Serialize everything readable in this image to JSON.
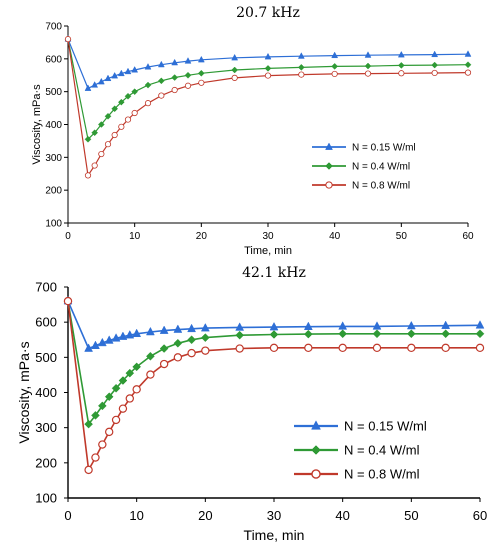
{
  "chart_data": [
    {
      "type": "line",
      "title": "20.7 kHz",
      "xlabel": "Time, min",
      "ylabel": "Viscosity, mPa·s",
      "xlim": [
        0,
        60
      ],
      "ylim": [
        100,
        700
      ],
      "xticks": [
        0,
        10,
        20,
        30,
        40,
        50,
        60
      ],
      "yticks": [
        100,
        200,
        300,
        400,
        500,
        600,
        700
      ],
      "legend_position": "middle-right",
      "grid": false,
      "series": [
        {
          "name": "N = 0.15 W/ml",
          "color": "#2e6fd6",
          "marker": "triangle",
          "x": [
            0,
            3,
            4,
            5,
            6,
            7,
            8,
            9,
            10,
            12,
            14,
            16,
            18,
            20,
            25,
            30,
            35,
            40,
            45,
            50,
            55,
            60
          ],
          "y": [
            660,
            510,
            520,
            530,
            540,
            548,
            555,
            561,
            566,
            575,
            582,
            588,
            593,
            597,
            603,
            606,
            608,
            610,
            611,
            612,
            613,
            614
          ]
        },
        {
          "name": "N = 0.4 W/ml",
          "color": "#2f9a35",
          "marker": "diamond",
          "x": [
            0,
            3,
            4,
            5,
            6,
            7,
            8,
            9,
            10,
            12,
            14,
            16,
            18,
            20,
            25,
            30,
            35,
            40,
            45,
            50,
            55,
            60
          ],
          "y": [
            660,
            355,
            375,
            400,
            425,
            448,
            468,
            486,
            500,
            520,
            533,
            543,
            550,
            556,
            566,
            571,
            574,
            577,
            578,
            580,
            581,
            582
          ]
        },
        {
          "name": "N = 0.8 W/ml",
          "color": "#c0392b",
          "marker": "circle",
          "x": [
            0,
            3,
            4,
            5,
            6,
            7,
            8,
            9,
            10,
            12,
            14,
            16,
            18,
            20,
            25,
            30,
            35,
            40,
            45,
            50,
            55,
            60
          ],
          "y": [
            660,
            245,
            275,
            310,
            340,
            368,
            393,
            415,
            435,
            465,
            488,
            505,
            518,
            527,
            542,
            549,
            552,
            554,
            555,
            556,
            557,
            558
          ]
        }
      ]
    },
    {
      "type": "line",
      "title": "42.1 kHz",
      "xlabel": "Time, min",
      "ylabel": "Viscosity, mPa·s",
      "xlim": [
        0,
        60
      ],
      "ylim": [
        100,
        700
      ],
      "xticks": [
        0,
        10,
        20,
        30,
        40,
        50,
        60
      ],
      "yticks": [
        100,
        200,
        300,
        400,
        500,
        600,
        700
      ],
      "legend_position": "bottom-right",
      "grid": false,
      "series": [
        {
          "name": "N = 0.15 W/ml",
          "color": "#2e6fd6",
          "marker": "triangle",
          "x": [
            0,
            3,
            4,
            5,
            6,
            7,
            8,
            9,
            10,
            12,
            14,
            16,
            18,
            20,
            25,
            30,
            35,
            40,
            45,
            50,
            55,
            60
          ],
          "y": [
            660,
            525,
            533,
            541,
            548,
            554,
            559,
            563,
            567,
            572,
            576,
            579,
            581,
            583,
            585,
            586,
            587,
            588,
            588,
            589,
            590,
            591
          ]
        },
        {
          "name": "N = 0.4 W/ml",
          "color": "#2f9a35",
          "marker": "diamond",
          "x": [
            0,
            3,
            4,
            5,
            6,
            7,
            8,
            9,
            10,
            12,
            14,
            16,
            18,
            20,
            25,
            30,
            35,
            40,
            45,
            50,
            55,
            60
          ],
          "y": [
            660,
            310,
            335,
            362,
            388,
            412,
            434,
            455,
            473,
            503,
            525,
            540,
            550,
            556,
            563,
            565,
            566,
            567,
            567,
            567,
            567,
            567
          ]
        },
        {
          "name": "N = 0.8 W/ml",
          "color": "#c0392b",
          "marker": "circle",
          "x": [
            0,
            3,
            4,
            5,
            6,
            7,
            8,
            9,
            10,
            12,
            14,
            16,
            18,
            20,
            25,
            30,
            35,
            40,
            45,
            50,
            55,
            60
          ],
          "y": [
            660,
            180,
            215,
            252,
            288,
            322,
            354,
            383,
            409,
            451,
            481,
            500,
            512,
            519,
            525,
            527,
            527,
            527,
            527,
            527,
            527,
            527
          ]
        }
      ]
    }
  ]
}
